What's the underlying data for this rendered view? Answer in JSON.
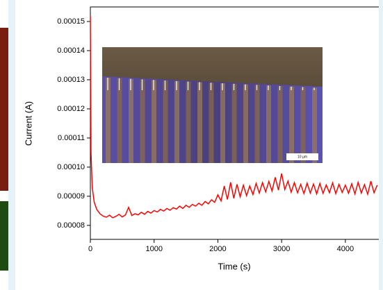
{
  "chart_data": {
    "type": "line",
    "x_label": "Time (s)",
    "y_label": "Current (A)",
    "annotation": "10 µm",
    "x": [
      0,
      10,
      30,
      60,
      100,
      150,
      200,
      250,
      300,
      350,
      400,
      450,
      500,
      550,
      600,
      650,
      700,
      750,
      800,
      850,
      900,
      950,
      1000,
      1050,
      1100,
      1150,
      1200,
      1250,
      1300,
      1350,
      1400,
      1450,
      1500,
      1550,
      1600,
      1650,
      1700,
      1750,
      1800,
      1850,
      1900,
      1950,
      2000,
      2050,
      2100,
      2150,
      2200,
      2250,
      2300,
      2350,
      2400,
      2450,
      2500,
      2550,
      2600,
      2650,
      2700,
      2750,
      2800,
      2850,
      2900,
      2950,
      3000,
      3050,
      3100,
      3150,
      3200,
      3250,
      3300,
      3350,
      3400,
      3450,
      3500,
      3550,
      3600,
      3650,
      3700,
      3750,
      3800,
      3850,
      3900,
      3950,
      4000,
      4050,
      4100,
      4150,
      4200,
      4250,
      4300,
      4350,
      4400,
      4450,
      4500
    ],
    "series": [
      {
        "color": "#ff0000",
        "values": [
          0.000152,
          0.000105,
          9.3e-05,
          8.8e-05,
          8.55e-05,
          8.4e-05,
          8.32e-05,
          8.28e-05,
          8.35e-05,
          8.26e-05,
          8.31e-05,
          8.38e-05,
          8.29e-05,
          8.36e-05,
          8.62e-05,
          8.34e-05,
          8.4e-05,
          8.36e-05,
          8.45e-05,
          8.38e-05,
          8.48e-05,
          8.42e-05,
          8.51e-05,
          8.46e-05,
          8.55e-05,
          8.49e-05,
          8.58e-05,
          8.52e-05,
          8.61e-05,
          8.56e-05,
          8.66e-05,
          8.58e-05,
          8.69e-05,
          8.62e-05,
          8.72e-05,
          8.66e-05,
          8.76e-05,
          8.69e-05,
          8.82e-05,
          8.74e-05,
          8.88e-05,
          8.79e-05,
          9.05e-05,
          8.84e-05,
          9.35e-05,
          8.89e-05,
          9.48e-05,
          8.93e-05,
          9.41e-05,
          8.98e-05,
          9.38e-05,
          9.02e-05,
          9.35e-05,
          9.06e-05,
          9.44e-05,
          9.11e-05,
          9.47e-05,
          9.15e-05,
          9.51e-05,
          9.18e-05,
          9.65e-05,
          9.21e-05,
          9.78e-05,
          9.23e-05,
          9.52e-05,
          9.14e-05,
          9.47e-05,
          9.12e-05,
          9.41e-05,
          9.09e-05,
          9.45e-05,
          9.11e-05,
          9.42e-05,
          9.08e-05,
          9.44e-05,
          9.1e-05,
          9.39e-05,
          9.12e-05,
          9.46e-05,
          9.09e-05,
          9.41e-05,
          9.13e-05,
          9.38e-05,
          9.1e-05,
          9.43e-05,
          9.08e-05,
          9.48e-05,
          9.11e-05,
          9.4e-05,
          9.07e-05,
          9.52e-05,
          9.12e-05,
          9.38e-05
        ]
      }
    ],
    "xlim": [
      0,
      4525
    ],
    "xticks": [
      0,
      1000,
      2000,
      3000,
      4000
    ],
    "ylim": [
      7.52e-05,
      0.000155
    ],
    "yticks": [
      8e-05,
      9e-05,
      {
        "value": 0.0001,
        "label": "0.00010"
      },
      0.00011,
      0.00012,
      0.00013,
      0.00014,
      0.00015
    ]
  }
}
